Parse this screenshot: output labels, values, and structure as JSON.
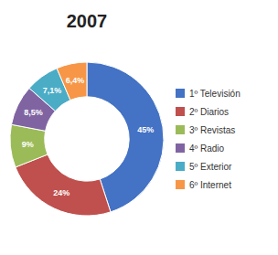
{
  "chart_data": {
    "type": "donut",
    "title": "2007",
    "categories": [
      "1º Televisión",
      "2º Diarios",
      "3º Revistas",
      "4º Radio",
      "5º Exterior",
      "6º Internet"
    ],
    "values": [
      45,
      24,
      9,
      8.5,
      7.1,
      6.4
    ],
    "value_labels": [
      "45%",
      "24%",
      "9%",
      "8,5%",
      "7,1%",
      "6,4%"
    ],
    "colors": [
      "#4472C4",
      "#C0504D",
      "#9BBB59",
      "#8064A2",
      "#4BACC6",
      "#F79646"
    ],
    "data_labels": true,
    "legend": "right"
  }
}
